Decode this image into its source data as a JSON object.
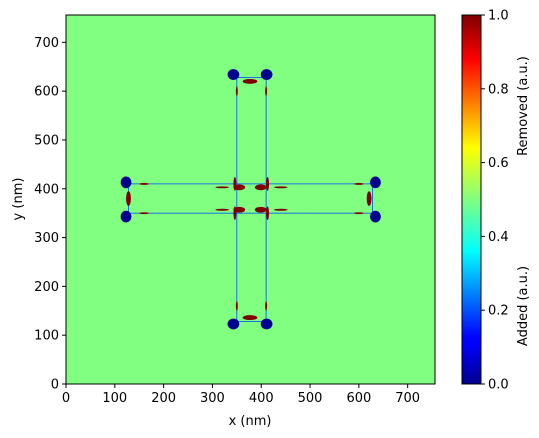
{
  "chart_data": {
    "type": "heatmap",
    "title": "",
    "xlabel": "x (nm)",
    "ylabel": "y (nm)",
    "xlim": [
      0,
      756
    ],
    "ylim": [
      0,
      756
    ],
    "x_ticks": [
      "0",
      "100",
      "200",
      "300",
      "400",
      "500",
      "600",
      "700"
    ],
    "x_tick_values": [
      0,
      100,
      200,
      300,
      400,
      500,
      600,
      700
    ],
    "y_ticks": [
      "0",
      "100",
      "200",
      "300",
      "400",
      "500",
      "600",
      "700"
    ],
    "y_tick_values": [
      0,
      100,
      200,
      300,
      400,
      500,
      600,
      700
    ],
    "colormap": "jet",
    "background_value": 0.5,
    "colorbar": {
      "range": [
        0,
        1
      ],
      "ticks": [
        "0.0",
        "0.2",
        "0.4",
        "0.6",
        "0.8",
        "1.0"
      ],
      "tick_values": [
        0,
        0.2,
        0.4,
        0.6,
        0.8,
        1.0
      ],
      "label_top": "Removed (a.u.)",
      "label_bottom": "Added (a.u.)"
    },
    "cross": {
      "horizontal_arm": {
        "x": [
          128,
          628
        ],
        "y": [
          350,
          410
        ]
      },
      "vertical_arm": {
        "x": [
          350,
          410
        ],
        "y": [
          128,
          628
        ]
      },
      "outline_color": "#0050ff"
    },
    "removed_regions": [
      {
        "x": 377,
        "y": 620,
        "rx": 15,
        "ry": 5
      },
      {
        "x": 377,
        "y": 136,
        "rx": 15,
        "ry": 5
      },
      {
        "x": 128,
        "y": 380,
        "rx": 5,
        "ry": 15
      },
      {
        "x": 621,
        "y": 380,
        "rx": 5,
        "ry": 15
      },
      {
        "x": 355,
        "y": 357,
        "rx": 12,
        "ry": 6
      },
      {
        "x": 399,
        "y": 357,
        "rx": 12,
        "ry": 6
      },
      {
        "x": 355,
        "y": 403,
        "rx": 12,
        "ry": 6
      },
      {
        "x": 399,
        "y": 403,
        "rx": 12,
        "ry": 6
      },
      {
        "x": 346,
        "y": 410,
        "rx": 3,
        "ry": 14
      },
      {
        "x": 413,
        "y": 410,
        "rx": 3,
        "ry": 14
      },
      {
        "x": 346,
        "y": 350,
        "rx": 3,
        "ry": 14
      },
      {
        "x": 413,
        "y": 350,
        "rx": 3,
        "ry": 14
      },
      {
        "x": 320,
        "y": 403,
        "rx": 14,
        "ry": 2
      },
      {
        "x": 440,
        "y": 403,
        "rx": 14,
        "ry": 2
      },
      {
        "x": 320,
        "y": 357,
        "rx": 14,
        "ry": 2
      },
      {
        "x": 440,
        "y": 357,
        "rx": 14,
        "ry": 2
      },
      {
        "x": 350,
        "y": 160,
        "rx": 2,
        "ry": 10
      },
      {
        "x": 410,
        "y": 160,
        "rx": 2,
        "ry": 10
      },
      {
        "x": 350,
        "y": 600,
        "rx": 2,
        "ry": 10
      },
      {
        "x": 410,
        "y": 600,
        "rx": 2,
        "ry": 10
      },
      {
        "x": 160,
        "y": 350,
        "rx": 10,
        "ry": 2
      },
      {
        "x": 160,
        "y": 410,
        "rx": 10,
        "ry": 2
      },
      {
        "x": 600,
        "y": 350,
        "rx": 10,
        "ry": 2
      },
      {
        "x": 600,
        "y": 410,
        "rx": 10,
        "ry": 2
      }
    ],
    "added_regions": [
      {
        "x": 343,
        "y": 634,
        "rx": 12,
        "ry": 11
      },
      {
        "x": 411,
        "y": 634,
        "rx": 12,
        "ry": 11
      },
      {
        "x": 343,
        "y": 123,
        "rx": 12,
        "ry": 11
      },
      {
        "x": 411,
        "y": 123,
        "rx": 12,
        "ry": 11
      },
      {
        "x": 123,
        "y": 413,
        "rx": 11,
        "ry": 12
      },
      {
        "x": 123,
        "y": 343,
        "rx": 11,
        "ry": 12
      },
      {
        "x": 634,
        "y": 413,
        "rx": 11,
        "ry": 12
      },
      {
        "x": 634,
        "y": 343,
        "rx": 11,
        "ry": 12
      }
    ]
  }
}
